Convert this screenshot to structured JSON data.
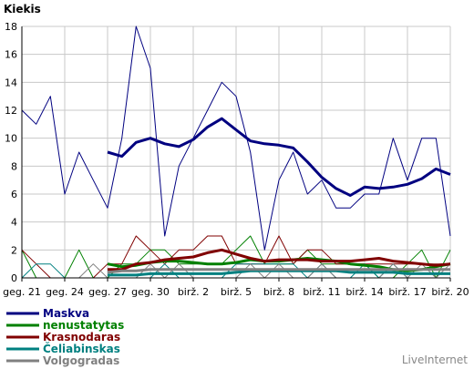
{
  "chart_data": {
    "type": "line",
    "title": "Kiekis",
    "ylim": [
      0,
      18
    ],
    "yticks": [
      0,
      2,
      4,
      6,
      8,
      10,
      12,
      14,
      16,
      18
    ],
    "xtick_labels": [
      "geg. 21",
      "geg. 24",
      "geg. 27",
      "geg. 30",
      "birž. 2",
      "birž. 5",
      "birž. 8",
      "birž. 11",
      "birž. 14",
      "birž. 17",
      "birž. 20"
    ],
    "xtick_days": [
      0,
      3,
      6,
      9,
      12,
      15,
      18,
      21,
      24,
      27,
      30
    ],
    "x_days": [
      0,
      1,
      2,
      3,
      4,
      5,
      6,
      7,
      8,
      9,
      10,
      11,
      12,
      13,
      14,
      15,
      16,
      17,
      18,
      19,
      20,
      21,
      22,
      23,
      24,
      25,
      26,
      27,
      28,
      29,
      30
    ],
    "grid": true,
    "legend_position": "bottom",
    "series": [
      {
        "name": "Maskva",
        "color": "#000080",
        "values": [
          12,
          11,
          13,
          6,
          9,
          7,
          5,
          10,
          18,
          15,
          3,
          8,
          10,
          12,
          14,
          13,
          9,
          2,
          7,
          9,
          6,
          7,
          5,
          5,
          6,
          6,
          10,
          7,
          10,
          10,
          3
        ]
      },
      {
        "name": "Maskva",
        "color": "#000080",
        "style": "smoothed",
        "values": [
          null,
          null,
          null,
          null,
          null,
          null,
          9,
          8.7,
          9.7,
          10,
          9.6,
          9.4,
          9.9,
          10.8,
          11.4,
          10.6,
          9.8,
          9.6,
          9.5,
          9.3,
          8.3,
          7.2,
          6.4,
          5.9,
          6.5,
          6.4,
          6.5,
          6.7,
          7.1,
          7.8,
          7.4
        ]
      },
      {
        "name": "nenustatytas",
        "color": "#008000",
        "values": [
          2,
          0,
          0,
          0,
          2,
          0,
          0,
          1,
          1,
          2,
          2,
          1,
          1,
          1,
          1,
          2,
          3,
          1,
          1,
          1,
          2,
          1,
          1,
          1,
          1,
          0,
          0,
          1,
          2,
          0,
          2
        ]
      },
      {
        "name": "nenustatytas",
        "color": "#008000",
        "style": "smoothed",
        "values": [
          null,
          null,
          null,
          null,
          null,
          null,
          1,
          0.8,
          0.9,
          1.1,
          1.2,
          1.2,
          1.1,
          1,
          1,
          1.1,
          1.3,
          1.2,
          1.2,
          1.3,
          1.4,
          1.3,
          1.2,
          1,
          0.9,
          0.8,
          0.6,
          0.5,
          0.6,
          0.8,
          1
        ]
      },
      {
        "name": "Krasnodaras",
        "color": "#800000",
        "values": [
          2,
          1,
          0,
          0,
          0,
          0,
          1,
          1,
          3,
          2,
          1,
          2,
          2,
          3,
          3,
          1,
          1,
          1,
          3,
          1,
          2,
          2,
          1,
          1,
          1,
          1,
          1,
          1,
          1,
          1,
          1
        ]
      },
      {
        "name": "Krasnodaras",
        "color": "#800000",
        "style": "smoothed",
        "values": [
          null,
          null,
          null,
          null,
          null,
          null,
          0.6,
          0.6,
          1,
          1.1,
          1.3,
          1.4,
          1.5,
          1.8,
          2,
          1.7,
          1.4,
          1.2,
          1.3,
          1.3,
          1.3,
          1.2,
          1.2,
          1.2,
          1.3,
          1.4,
          1.2,
          1.1,
          1,
          0.9,
          1
        ]
      },
      {
        "name": "Čeliabinskas",
        "color": "#008080",
        "values": [
          0,
          1,
          1,
          0,
          0,
          0,
          0,
          0,
          0,
          0,
          1,
          0,
          0,
          0,
          0,
          1,
          1,
          1,
          1,
          1,
          0,
          1,
          0,
          0,
          1,
          0,
          1,
          0,
          0,
          0,
          0
        ]
      },
      {
        "name": "Čeliabinskas",
        "color": "#008080",
        "style": "smoothed",
        "values": [
          null,
          null,
          null,
          null,
          null,
          null,
          0.2,
          0.2,
          0.2,
          0.3,
          0.3,
          0.3,
          0.3,
          0.3,
          0.3,
          0.4,
          0.5,
          0.5,
          0.5,
          0.5,
          0.5,
          0.5,
          0.5,
          0.4,
          0.4,
          0.4,
          0.4,
          0.3,
          0.3,
          0.3,
          0.3
        ]
      },
      {
        "name": "Volgogradas",
        "color": "#808080",
        "values": [
          0,
          0,
          0,
          0,
          0,
          1,
          0,
          0,
          0,
          1,
          0,
          1,
          0,
          0,
          0,
          0,
          1,
          0,
          1,
          0,
          0,
          1,
          0,
          0,
          0,
          0,
          1,
          0,
          1,
          0,
          1
        ]
      },
      {
        "name": "Volgogradas",
        "color": "#808080",
        "style": "smoothed",
        "values": [
          null,
          null,
          null,
          null,
          null,
          null,
          0.4,
          0.5,
          0.5,
          0.6,
          0.6,
          0.6,
          0.6,
          0.6,
          0.6,
          0.6,
          0.6,
          0.6,
          0.6,
          0.6,
          0.6,
          0.6,
          0.6,
          0.6,
          0.6,
          0.6,
          0.6,
          0.6,
          0.6,
          0.6,
          0.6
        ]
      }
    ]
  },
  "legend": [
    {
      "label": "Maskva",
      "color": "#000080"
    },
    {
      "label": "nenustatytas",
      "color": "#008000"
    },
    {
      "label": "Krasnodaras",
      "color": "#800000"
    },
    {
      "label": "Čeliabinskas",
      "color": "#008080"
    },
    {
      "label": "Volgogradas",
      "color": "#808080"
    }
  ],
  "brand": "LiveInternet"
}
